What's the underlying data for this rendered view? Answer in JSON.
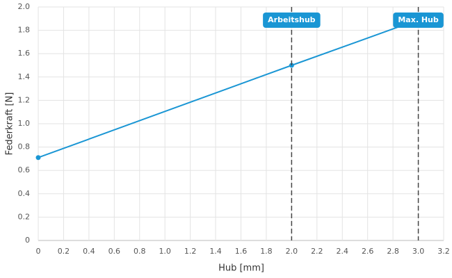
{
  "chart_data": {
    "type": "line",
    "x_label": "Hub [mm]",
    "y_label": "Federkraft [N]",
    "x": [
      0,
      2,
      3
    ],
    "series": [
      {
        "color": "#1a96d4",
        "values": [
          0.71,
          1.5,
          1.89
        ]
      }
    ],
    "annotations": [
      {
        "x": 2,
        "label": "Arbeitshub"
      },
      {
        "x": 3,
        "label": "Max. Hub"
      }
    ],
    "annotation_color": "#1a96d4",
    "xlim": [
      0,
      3.2
    ],
    "xticks": [
      0,
      0.2,
      0.4,
      0.6,
      0.8,
      {
        "value": 1,
        "label": "1.0"
      },
      1.2,
      1.4,
      1.6,
      1.8,
      {
        "value": 2,
        "label": "2.0"
      },
      2.2,
      2.4,
      2.6,
      2.8,
      {
        "value": 3,
        "label": "3.0"
      },
      3.2
    ],
    "ylim": [
      0,
      2
    ],
    "yticks": [
      0,
      0.2,
      0.4,
      0.6,
      0.8,
      {
        "value": 1,
        "label": "1.0"
      },
      1.2,
      1.4,
      1.6,
      1.8,
      {
        "value": 2,
        "label": "2.0"
      }
    ],
    "grid": true
  }
}
